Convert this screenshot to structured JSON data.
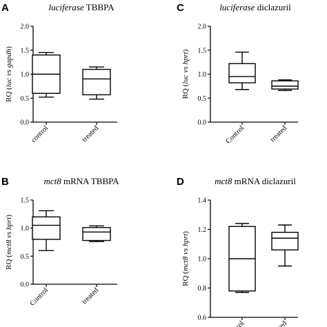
{
  "chart_data": [
    {
      "type": "box",
      "panel": "A",
      "title_italic": "luciferase",
      "title_rest": " TBBPA",
      "ylabel_pre": "RQ (",
      "ylabel_italic": "luc vs gapdh",
      "ylabel_post": ")",
      "ylim": [
        0,
        2.0
      ],
      "yticks": [
        "0.0",
        "0.5",
        "1.0",
        "1.5",
        "2.0"
      ],
      "yticks_values": [
        0,
        0.5,
        1.0,
        1.5,
        2.0
      ],
      "categories": [
        "control",
        "treated"
      ],
      "boxes": [
        {
          "min": 0.52,
          "q1": 0.6,
          "median": 1.0,
          "q3": 1.4,
          "max": 1.45
        },
        {
          "min": 0.48,
          "q1": 0.57,
          "median": 0.9,
          "q3": 1.1,
          "max": 1.15
        }
      ],
      "grid": false
    },
    {
      "type": "box",
      "panel": "C",
      "title_italic": "luciferase",
      "title_rest": " diclazuril",
      "ylabel_pre": "RQ (",
      "ylabel_italic": "luc vs hprt",
      "ylabel_post": ")",
      "ylim": [
        0,
        2.0
      ],
      "yticks": [
        "0.0",
        "0.5",
        "1.0",
        "1.5",
        "2.0"
      ],
      "yticks_values": [
        0,
        0.5,
        1.0,
        1.5,
        2.0
      ],
      "categories": [
        "Control",
        "treated"
      ],
      "boxes": [
        {
          "min": 0.68,
          "q1": 0.82,
          "median": 0.95,
          "q3": 1.22,
          "max": 1.46
        },
        {
          "min": 0.66,
          "q1": 0.69,
          "median": 0.75,
          "q3": 0.86,
          "max": 0.88
        }
      ],
      "grid": false
    },
    {
      "type": "box",
      "panel": "B",
      "title_italic": "mct8",
      "title_rest": " mRNA TBBPA",
      "ylabel_pre": "RQ (",
      "ylabel_italic": "mct8 vs hprt",
      "ylabel_post": ")",
      "ylim": [
        0,
        1.5
      ],
      "yticks": [
        "0.0",
        "0.5",
        "1.0",
        "1.5"
      ],
      "yticks_values": [
        0,
        0.5,
        1.0,
        1.5
      ],
      "categories": [
        "Control",
        "treated"
      ],
      "boxes": [
        {
          "min": 0.6,
          "q1": 0.8,
          "median": 1.05,
          "q3": 1.2,
          "max": 1.31
        },
        {
          "min": 0.76,
          "q1": 0.78,
          "median": 0.93,
          "q3": 1.01,
          "max": 1.04
        }
      ],
      "grid": false
    },
    {
      "type": "box",
      "panel": "D",
      "title_italic": "mct8",
      "title_rest": " mRNA diclazuril",
      "ylabel_pre": "RQ (",
      "ylabel_italic": "mct8 vs hprt",
      "ylabel_post": ")",
      "ylim": [
        0.6,
        1.4
      ],
      "yticks": [
        "0.6",
        "0.8",
        "1.0",
        "1.2",
        "1.4"
      ],
      "yticks_values": [
        0.6,
        0.8,
        1.0,
        1.2,
        1.4
      ],
      "categories": [
        "Control",
        "treated"
      ],
      "boxes": [
        {
          "min": 0.77,
          "q1": 0.78,
          "median": 1.0,
          "q3": 1.22,
          "max": 1.24
        },
        {
          "min": 0.95,
          "q1": 1.06,
          "median": 1.14,
          "q3": 1.18,
          "max": 1.23
        }
      ],
      "grid": false
    }
  ]
}
